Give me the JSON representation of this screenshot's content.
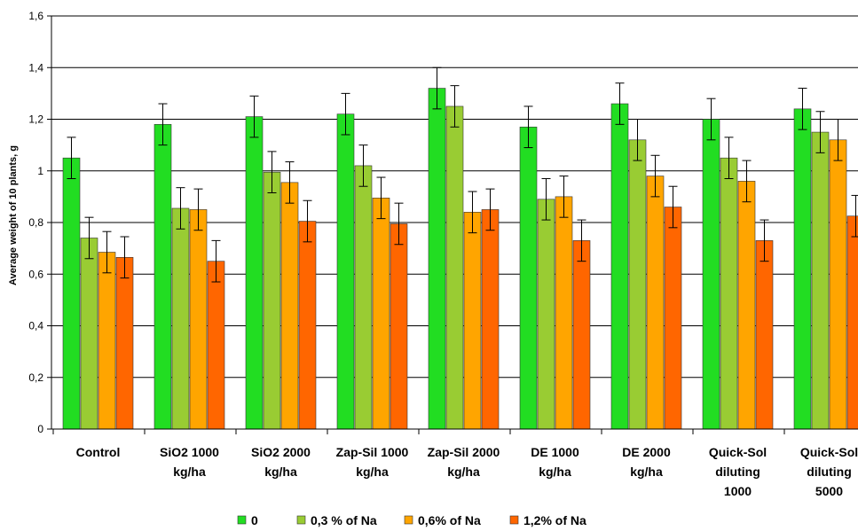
{
  "chart_data": {
    "type": "bar",
    "title": "",
    "xlabel": "",
    "ylabel": "Average weight of 10 plants, g",
    "ylim": [
      0,
      1.6
    ],
    "yticks": [
      "0",
      "0,2",
      "0,4",
      "0,6",
      "0,8",
      "1",
      "1,2",
      "1,4",
      "1,6"
    ],
    "grid": true,
    "legend_position": "bottom",
    "categories": [
      [
        "Control"
      ],
      [
        "SiO2 1000",
        "kg/ha"
      ],
      [
        "SiO2 2000",
        "kg/ha"
      ],
      [
        "Zap-Sil 1000",
        "kg/ha"
      ],
      [
        "Zap-Sil 2000",
        "kg/ha"
      ],
      [
        "DE 1000",
        "kg/ha"
      ],
      [
        "DE 2000",
        "kg/ha"
      ],
      [
        "Quick-Sol",
        "diluting",
        "1000"
      ],
      [
        "Quick-Sol",
        "diluting",
        "5000"
      ]
    ],
    "series": [
      {
        "name": "0",
        "color": "#22dd22",
        "values": [
          1.05,
          1.18,
          1.21,
          1.22,
          1.32,
          1.17,
          1.26,
          1.2,
          1.24
        ],
        "errors": [
          0.08,
          0.08,
          0.08,
          0.08,
          0.08,
          0.08,
          0.08,
          0.08,
          0.08
        ]
      },
      {
        "name": "0,3 % of Na",
        "color": "#99cc33",
        "values": [
          0.74,
          0.855,
          0.995,
          1.02,
          1.25,
          0.89,
          1.12,
          1.05,
          1.15
        ],
        "errors": [
          0.08,
          0.08,
          0.08,
          0.08,
          0.08,
          0.08,
          0.08,
          0.08,
          0.08
        ]
      },
      {
        "name": "0,6% of Na",
        "color": "#ffa500",
        "values": [
          0.685,
          0.85,
          0.955,
          0.895,
          0.84,
          0.9,
          0.98,
          0.96,
          1.12
        ],
        "errors": [
          0.08,
          0.08,
          0.08,
          0.08,
          0.08,
          0.08,
          0.08,
          0.08,
          0.08
        ]
      },
      {
        "name": "1,2% of Na",
        "color": "#ff6600",
        "values": [
          0.665,
          0.65,
          0.805,
          0.795,
          0.85,
          0.73,
          0.86,
          0.73,
          0.825
        ],
        "errors": [
          0.08,
          0.08,
          0.08,
          0.08,
          0.08,
          0.08,
          0.08,
          0.08,
          0.08
        ]
      }
    ]
  }
}
